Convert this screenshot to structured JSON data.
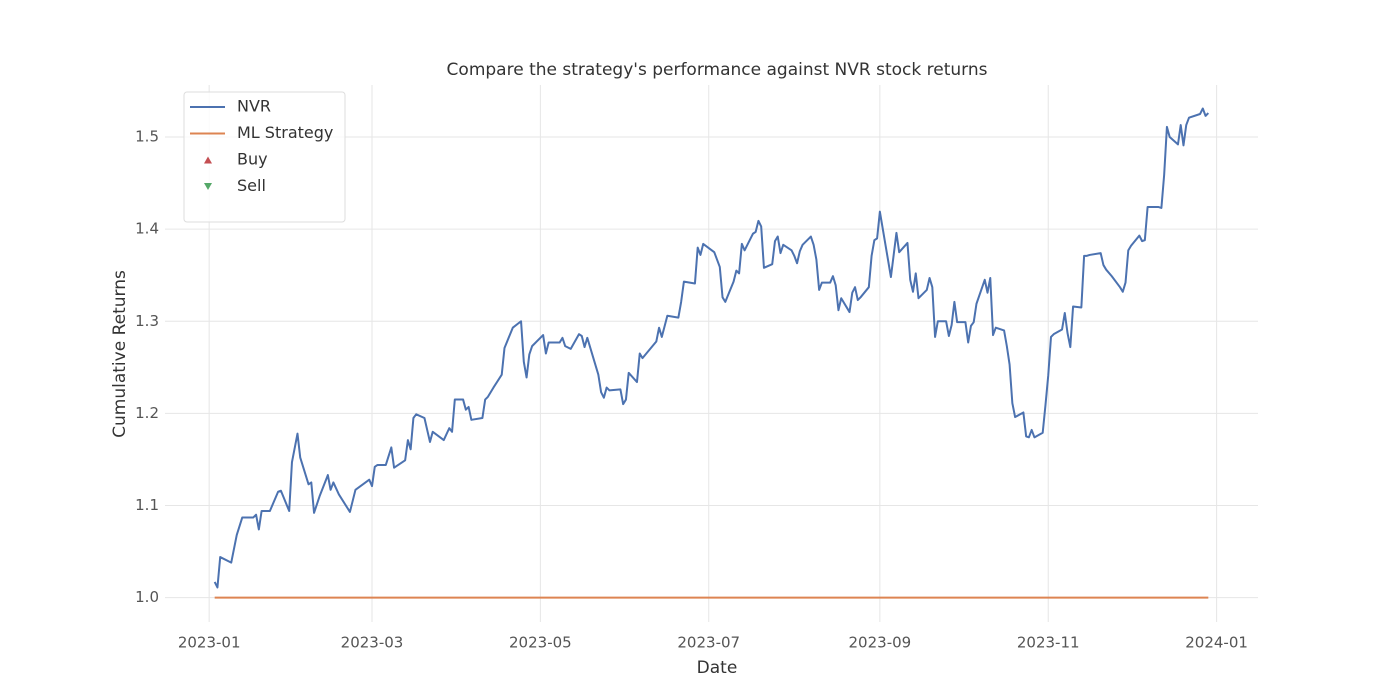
{
  "chart_data": {
    "type": "line",
    "title": "Compare the strategy's performance against NVR stock returns",
    "xlabel": "Date",
    "ylabel": "Cumulative Returns",
    "xlim": [
      "2022-12-16",
      "2024-01-16"
    ],
    "xticks": [
      "2023-01",
      "2023-03",
      "2023-05",
      "2023-07",
      "2023-09",
      "2023-11",
      "2024-01"
    ],
    "ylim": [
      0.9735,
      1.5565
    ],
    "yticks": [
      {
        "value": 1,
        "label": "1.0"
      },
      1.1,
      1.2,
      1.3,
      1.4,
      1.5
    ],
    "grid": true,
    "legend": "upper left",
    "series": [
      {
        "name": "NVR",
        "color": "#4c72b0",
        "x": [
          "2023-01-03",
          "2023-01-04",
          "2023-01-05",
          "2023-01-09",
          "2023-01-11",
          "2023-01-13",
          "2023-01-17",
          "2023-01-18",
          "2023-01-19",
          "2023-01-20",
          "2023-01-23",
          "2023-01-26",
          "2023-01-27",
          "2023-01-30",
          "2023-01-31",
          "2023-02-02",
          "2023-02-03",
          "2023-02-06",
          "2023-02-07",
          "2023-02-08",
          "2023-02-10",
          "2023-02-13",
          "2023-02-14",
          "2023-02-15",
          "2023-02-17",
          "2023-02-21",
          "2023-02-23",
          "2023-02-28",
          "2023-03-01",
          "2023-03-02",
          "2023-03-03",
          "2023-03-06",
          "2023-03-08",
          "2023-03-09",
          "2023-03-13",
          "2023-03-14",
          "2023-03-15",
          "2023-03-16",
          "2023-03-17",
          "2023-03-20",
          "2023-03-22",
          "2023-03-23",
          "2023-03-27",
          "2023-03-29",
          "2023-03-30",
          "2023-03-31",
          "2023-04-03",
          "2023-04-04",
          "2023-04-05",
          "2023-04-06",
          "2023-04-10",
          "2023-04-11",
          "2023-04-12",
          "2023-04-14",
          "2023-04-17",
          "2023-04-18",
          "2023-04-21",
          "2023-04-24",
          "2023-04-25",
          "2023-04-26",
          "2023-04-27",
          "2023-04-28",
          "2023-05-01",
          "2023-05-02",
          "2023-05-03",
          "2023-05-04",
          "2023-05-08",
          "2023-05-09",
          "2023-05-10",
          "2023-05-12",
          "2023-05-15",
          "2023-05-16",
          "2023-05-17",
          "2023-05-18",
          "2023-05-22",
          "2023-05-23",
          "2023-05-24",
          "2023-05-25",
          "2023-05-26",
          "2023-05-30",
          "2023-05-31",
          "2023-06-01",
          "2023-06-02",
          "2023-06-05",
          "2023-06-06",
          "2023-06-07",
          "2023-06-12",
          "2023-06-13",
          "2023-06-14",
          "2023-06-16",
          "2023-06-20",
          "2023-06-21",
          "2023-06-22",
          "2023-06-26",
          "2023-06-27",
          "2023-06-28",
          "2023-06-29",
          "2023-07-03",
          "2023-07-05",
          "2023-07-06",
          "2023-07-07",
          "2023-07-10",
          "2023-07-11",
          "2023-07-12",
          "2023-07-13",
          "2023-07-14",
          "2023-07-17",
          "2023-07-18",
          "2023-07-19",
          "2023-07-20",
          "2023-07-21",
          "2023-07-24",
          "2023-07-25",
          "2023-07-26",
          "2023-07-27",
          "2023-07-28",
          "2023-07-31",
          "2023-08-01",
          "2023-08-02",
          "2023-08-03",
          "2023-08-04",
          "2023-08-07",
          "2023-08-08",
          "2023-08-09",
          "2023-08-10",
          "2023-08-11",
          "2023-08-14",
          "2023-08-15",
          "2023-08-16",
          "2023-08-17",
          "2023-08-18",
          "2023-08-21",
          "2023-08-22",
          "2023-08-23",
          "2023-08-24",
          "2023-08-25",
          "2023-08-28",
          "2023-08-29",
          "2023-08-30",
          "2023-08-31",
          "2023-09-01",
          "2023-09-05",
          "2023-09-06",
          "2023-09-07",
          "2023-09-08",
          "2023-09-11",
          "2023-09-12",
          "2023-09-13",
          "2023-09-14",
          "2023-09-15",
          "2023-09-18",
          "2023-09-19",
          "2023-09-20",
          "2023-09-21",
          "2023-09-22",
          "2023-09-25",
          "2023-09-26",
          "2023-09-27",
          "2023-09-28",
          "2023-09-29",
          "2023-10-02",
          "2023-10-03",
          "2023-10-04",
          "2023-10-05",
          "2023-10-06",
          "2023-10-09",
          "2023-10-10",
          "2023-10-11",
          "2023-10-12",
          "2023-10-13",
          "2023-10-16",
          "2023-10-17",
          "2023-10-18",
          "2023-10-19",
          "2023-10-20",
          "2023-10-23",
          "2023-10-24",
          "2023-10-25",
          "2023-10-26",
          "2023-10-27",
          "2023-10-30",
          "2023-10-31",
          "2023-11-01",
          "2023-11-02",
          "2023-11-03",
          "2023-11-06",
          "2023-11-07",
          "2023-11-08",
          "2023-11-09",
          "2023-11-10",
          "2023-11-13",
          "2023-11-14",
          "2023-11-15",
          "2023-11-16",
          "2023-11-20",
          "2023-11-21",
          "2023-11-22",
          "2023-11-24",
          "2023-11-27",
          "2023-11-28",
          "2023-11-29",
          "2023-11-30",
          "2023-12-01",
          "2023-12-04",
          "2023-12-05",
          "2023-12-06",
          "2023-12-07",
          "2023-12-11",
          "2023-12-12",
          "2023-12-13",
          "2023-12-14",
          "2023-12-15",
          "2023-12-18",
          "2023-12-19",
          "2023-12-20",
          "2023-12-21",
          "2023-12-22",
          "2023-12-26",
          "2023-12-27",
          "2023-12-28",
          "2023-12-29"
        ],
        "values": [
          1.017,
          1.011,
          1.044,
          1.038,
          1.068,
          1.087,
          1.087,
          1.09,
          1.074,
          1.094,
          1.094,
          1.115,
          1.116,
          1.094,
          1.147,
          1.178,
          1.152,
          1.123,
          1.125,
          1.092,
          1.11,
          1.133,
          1.117,
          1.125,
          1.112,
          1.093,
          1.117,
          1.128,
          1.121,
          1.142,
          1.144,
          1.144,
          1.163,
          1.141,
          1.149,
          1.171,
          1.161,
          1.195,
          1.199,
          1.195,
          1.169,
          1.18,
          1.171,
          1.184,
          1.18,
          1.215,
          1.215,
          1.204,
          1.207,
          1.193,
          1.195,
          1.215,
          1.218,
          1.228,
          1.242,
          1.271,
          1.293,
          1.3,
          1.256,
          1.239,
          1.264,
          1.273,
          1.282,
          1.285,
          1.265,
          1.277,
          1.277,
          1.282,
          1.273,
          1.27,
          1.286,
          1.284,
          1.272,
          1.282,
          1.242,
          1.223,
          1.217,
          1.228,
          1.225,
          1.226,
          1.21,
          1.215,
          1.244,
          1.234,
          1.265,
          1.26,
          1.278,
          1.293,
          1.283,
          1.306,
          1.304,
          1.321,
          1.343,
          1.341,
          1.38,
          1.372,
          1.384,
          1.375,
          1.359,
          1.326,
          1.321,
          1.343,
          1.355,
          1.352,
          1.384,
          1.377,
          1.395,
          1.397,
          1.409,
          1.403,
          1.358,
          1.362,
          1.387,
          1.392,
          1.374,
          1.383,
          1.377,
          1.371,
          1.363,
          1.376,
          1.383,
          1.392,
          1.383,
          1.367,
          1.334,
          1.342,
          1.342,
          1.349,
          1.339,
          1.312,
          1.325,
          1.31,
          1.331,
          1.337,
          1.323,
          1.326,
          1.337,
          1.371,
          1.388,
          1.39,
          1.419,
          1.348,
          1.372,
          1.396,
          1.375,
          1.385,
          1.345,
          1.332,
          1.352,
          1.325,
          1.334,
          1.347,
          1.337,
          1.283,
          1.3,
          1.3,
          1.284,
          1.296,
          1.321,
          1.299,
          1.299,
          1.277,
          1.295,
          1.299,
          1.319,
          1.345,
          1.331,
          1.347,
          1.285,
          1.293,
          1.29,
          1.273,
          1.253,
          1.211,
          1.196,
          1.201,
          1.175,
          1.174,
          1.182,
          1.174,
          1.179,
          1.209,
          1.241,
          1.283,
          1.286,
          1.291,
          1.309,
          1.287,
          1.272,
          1.316,
          1.315,
          1.371,
          1.371,
          1.372,
          1.374,
          1.361,
          1.356,
          1.349,
          1.337,
          1.332,
          1.342,
          1.377,
          1.382,
          1.393,
          1.387,
          1.388,
          1.424,
          1.424,
          1.423,
          1.459,
          1.511,
          1.5,
          1.492,
          1.513,
          1.491,
          1.513,
          1.521,
          1.525,
          1.531,
          1.523,
          1.526
        ]
      },
      {
        "name": "ML Strategy",
        "color": "#dd8452",
        "x": [
          "2023-01-03",
          "2023-12-29"
        ],
        "values": [
          1,
          1
        ]
      },
      {
        "name": "Buy",
        "color": "#c44e52",
        "marker": "^",
        "x": [],
        "values": []
      },
      {
        "name": "Sell",
        "color": "#55a868",
        "marker": "v",
        "x": [],
        "values": []
      }
    ]
  }
}
